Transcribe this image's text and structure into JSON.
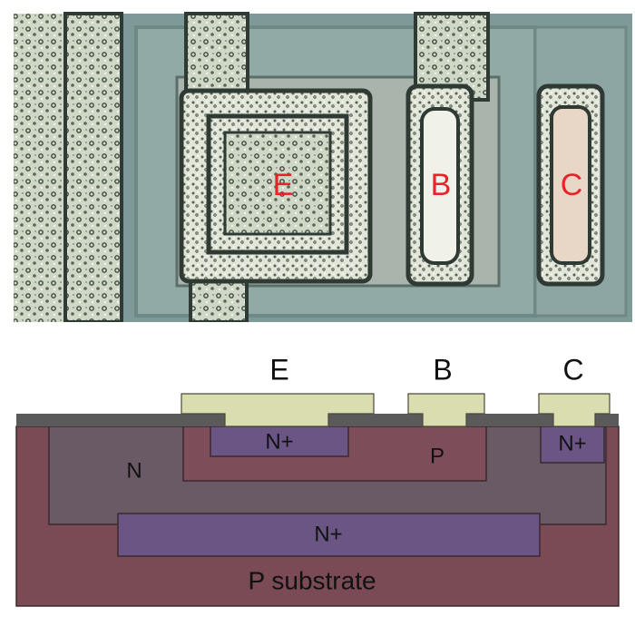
{
  "micrograph": {
    "labels": {
      "emitter": "E",
      "base": "B",
      "collector": "C"
    }
  },
  "cross_section": {
    "terminals": {
      "emitter": "E",
      "base": "B",
      "collector": "C"
    },
    "regions": {
      "emitter_implant": "N+",
      "base": "P",
      "collector_contact": "N+",
      "n_well": "N",
      "buried_layer": "N+",
      "substrate": "P substrate"
    }
  },
  "colors": {
    "substrate": "#7a4a55",
    "n_well": "#6a5a66",
    "p_base": "#7d4d5a",
    "n_plus": "#6a5585",
    "oxide": "#5a5a5a",
    "metal": "#d9ddb0",
    "micro_label": "#e8232a"
  }
}
